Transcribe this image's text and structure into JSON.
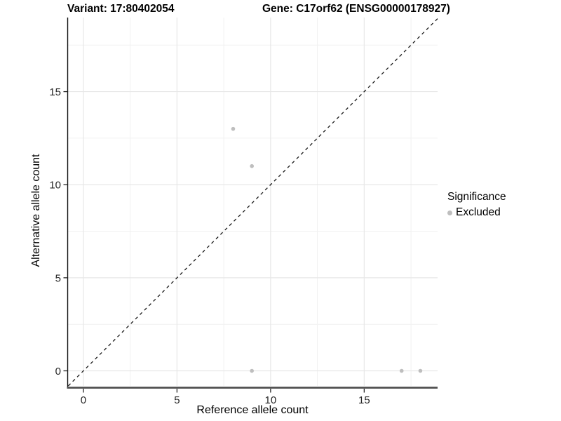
{
  "titles": {
    "left": "Variant: 17:80402054",
    "right": "Gene: C17orf62 (ENSG00000178927)"
  },
  "chart_data": {
    "type": "scatter",
    "xlabel": "Reference allele count",
    "ylabel": "Alternative allele count",
    "xlim": [
      -0.84,
      18.92
    ],
    "ylim": [
      -0.81,
      18.98
    ],
    "xticks": [
      0,
      5,
      10,
      15
    ],
    "yticks": [
      0,
      5,
      10,
      15
    ],
    "x_minor_gridlines": [
      2.5,
      7.5,
      12.5,
      17.5
    ],
    "y_minor_gridlines": [
      2.5,
      7.5,
      12.5,
      17.5
    ],
    "grid": true,
    "identity_line": {
      "type": "abline",
      "slope": 1,
      "intercept": 0,
      "style": "dashed",
      "color": "#1a1a1a"
    },
    "series": [
      {
        "name": "Excluded",
        "color": "#bebebe",
        "points": [
          [
            8,
            13
          ],
          [
            9,
            11
          ],
          [
            9,
            0
          ],
          [
            17,
            0
          ],
          [
            18,
            0
          ]
        ]
      }
    ],
    "legend": {
      "title": "Significance",
      "position": "right",
      "entries": [
        {
          "label": "Excluded",
          "color": "#bebebe"
        }
      ]
    },
    "colors": {
      "major_grid": "#e7e7e7",
      "minor_grid": "#f1f1f1",
      "axis_line_left": "#111111",
      "axis_line_bottom": "#4f4f4f",
      "tick": "#262626",
      "background": "#ffffff"
    }
  }
}
